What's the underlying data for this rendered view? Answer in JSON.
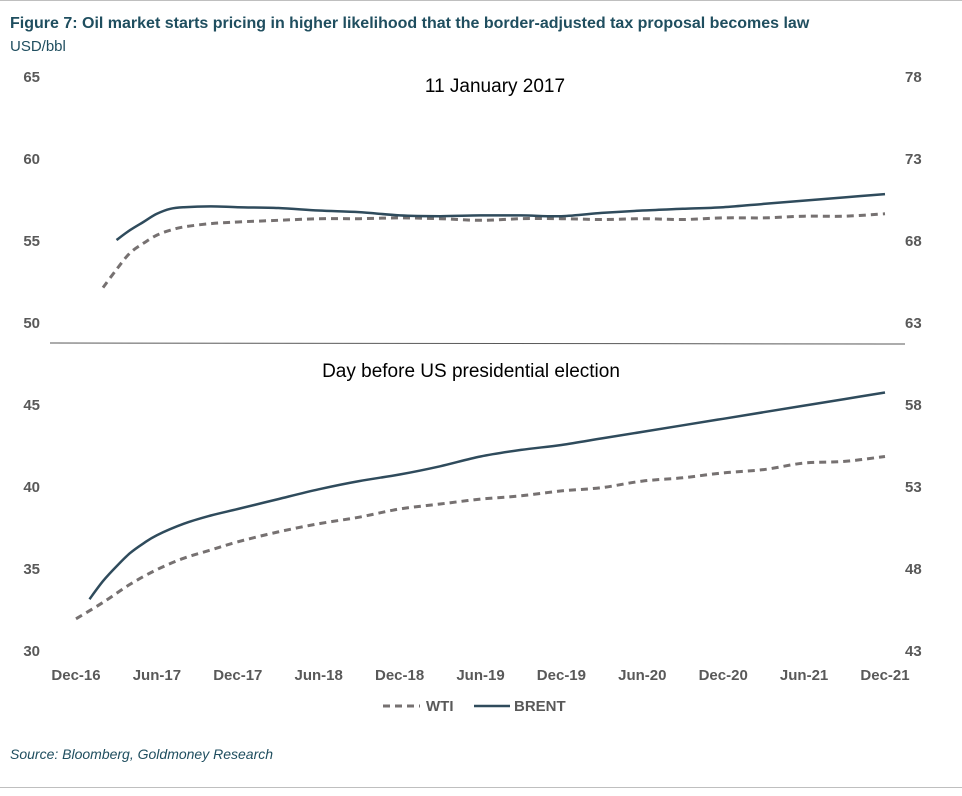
{
  "figure": {
    "title": "Figure 7: Oil market starts pricing in higher likelihood that the border-adjusted tax proposal becomes law",
    "unit": "USD/bbl",
    "source": "Source: Bloomberg, Goldmoney Research"
  },
  "colors": {
    "wti": "#767171",
    "brent": "#2f4b5c",
    "tick": "#595959",
    "divider": "#595959"
  },
  "chart_data": {
    "type": "line",
    "x_ticks": [
      "Dec-16",
      "Jun-17",
      "Dec-17",
      "Jun-18",
      "Dec-18",
      "Jun-19",
      "Dec-19",
      "Jun-20",
      "Dec-20",
      "Jun-21",
      "Dec-21"
    ],
    "x_tick_months": [
      0,
      6,
      12,
      18,
      24,
      30,
      36,
      42,
      48,
      54,
      60
    ],
    "x_range_months": [
      0,
      60
    ],
    "left_axis_ticks": [
      "65",
      "60",
      "55",
      "50",
      "45",
      "40",
      "35",
      "30"
    ],
    "right_axis_ticks": [
      "78",
      "73",
      "68",
      "63",
      "58",
      "53",
      "48",
      "43"
    ],
    "legend": {
      "position": "bottom-center",
      "items": [
        "WTI",
        "BRENT"
      ]
    },
    "panels": [
      {
        "label": "11 January 2017",
        "left_axis": {
          "min": 50,
          "max": 65
        },
        "right_axis": {
          "min": 63,
          "max": 78
        },
        "series": [
          {
            "name": "WTI",
            "axis": "left",
            "style": "dashed",
            "x": [
              2,
              3,
              4,
              5,
              6,
              7,
              8,
              10,
              12,
              15,
              18,
              21,
              24,
              27,
              30,
              33,
              36,
              39,
              42,
              45,
              48,
              51,
              54,
              57,
              60
            ],
            "values": [
              52.1,
              53.2,
              54.2,
              54.8,
              55.3,
              55.6,
              55.8,
              56.0,
              56.1,
              56.2,
              56.3,
              56.3,
              56.35,
              56.3,
              56.2,
              56.3,
              56.3,
              56.25,
              56.3,
              56.25,
              56.35,
              56.35,
              56.45,
              56.45,
              56.6
            ]
          },
          {
            "name": "BRENT",
            "axis": "left",
            "style": "solid",
            "x": [
              3,
              4,
              5,
              6,
              7,
              8,
              10,
              12,
              15,
              18,
              21,
              24,
              27,
              30,
              33,
              36,
              39,
              42,
              45,
              48,
              51,
              54,
              57,
              60
            ],
            "values": [
              55.0,
              55.6,
              56.1,
              56.6,
              56.9,
              57.0,
              57.05,
              57.0,
              56.95,
              56.8,
              56.7,
              56.5,
              56.45,
              56.5,
              56.5,
              56.45,
              56.65,
              56.8,
              56.9,
              57.0,
              57.2,
              57.4,
              57.6,
              57.8
            ]
          }
        ]
      },
      {
        "label": "Day before US presidential election",
        "left_axis": {
          "min": 30,
          "max": 45
        },
        "right_axis": {
          "min": 43,
          "max": 58
        },
        "series": [
          {
            "name": "WTI",
            "axis": "left",
            "style": "dashed",
            "x": [
              0,
              2,
              4,
              6,
              8,
              10,
              12,
              15,
              18,
              21,
              24,
              27,
              30,
              33,
              36,
              39,
              42,
              45,
              48,
              51,
              54,
              57,
              60
            ],
            "values": [
              31.9,
              32.9,
              34.0,
              34.9,
              35.6,
              36.1,
              36.6,
              37.2,
              37.7,
              38.1,
              38.6,
              38.9,
              39.2,
              39.4,
              39.7,
              39.9,
              40.3,
              40.5,
              40.8,
              41.0,
              41.4,
              41.5,
              41.8
            ]
          },
          {
            "name": "BRENT",
            "axis": "left",
            "style": "solid",
            "x": [
              1,
              2,
              3,
              4,
              5,
              6,
              8,
              10,
              12,
              15,
              18,
              21,
              24,
              27,
              30,
              33,
              36,
              39,
              42,
              45,
              48,
              51,
              54,
              57,
              60
            ],
            "values": [
              33.1,
              34.2,
              35.1,
              35.9,
              36.5,
              37.0,
              37.7,
              38.2,
              38.6,
              39.2,
              39.8,
              40.3,
              40.7,
              41.2,
              41.8,
              42.2,
              42.5,
              42.9,
              43.3,
              43.7,
              44.1,
              44.5,
              44.9,
              45.3,
              45.7
            ]
          }
        ]
      }
    ]
  }
}
